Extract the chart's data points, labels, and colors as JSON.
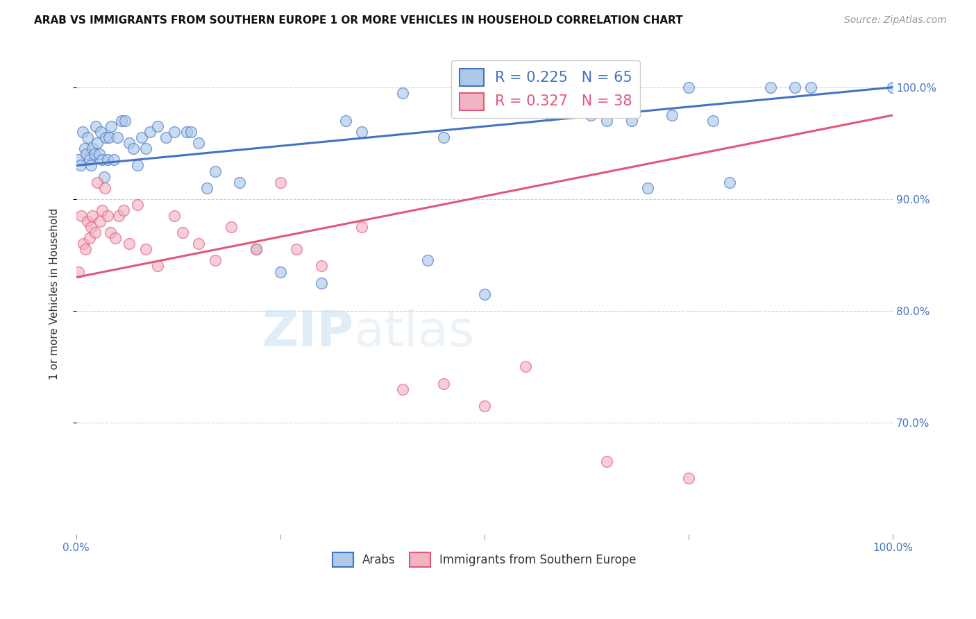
{
  "title": "ARAB VS IMMIGRANTS FROM SOUTHERN EUROPE 1 OR MORE VEHICLES IN HOUSEHOLD CORRELATION CHART",
  "source": "Source: ZipAtlas.com",
  "ylabel": "1 or more Vehicles in Household",
  "legend_arab": "Arabs",
  "legend_imm": "Immigrants from Southern Europe",
  "R_arab": 0.225,
  "N_arab": 65,
  "R_imm": 0.327,
  "N_imm": 38,
  "watermark_zip": "ZIP",
  "watermark_atlas": "atlas",
  "arab_color": "#adc9e8",
  "arab_line_color": "#4472c4",
  "imm_color": "#f2b3c5",
  "imm_line_color": "#e05878",
  "background": "#ffffff",
  "arab_x": [
    0.3,
    0.5,
    0.8,
    1.0,
    1.2,
    1.4,
    1.6,
    1.8,
    2.0,
    2.2,
    2.4,
    2.6,
    2.8,
    3.0,
    3.2,
    3.4,
    3.6,
    3.8,
    4.0,
    4.3,
    4.6,
    5.0,
    5.5,
    6.0,
    6.5,
    7.0,
    7.5,
    8.0,
    8.5,
    9.0,
    10.0,
    11.0,
    12.0,
    13.5,
    14.0,
    15.0,
    16.0,
    17.0,
    20.0,
    22.0,
    25.0,
    30.0,
    33.0,
    35.0,
    40.0,
    43.0,
    45.0,
    48.0,
    50.0,
    53.0,
    55.0,
    58.0,
    60.0,
    63.0,
    65.0,
    68.0,
    70.0,
    73.0,
    75.0,
    78.0,
    80.0,
    85.0,
    88.0,
    90.0,
    100.0
  ],
  "arab_y": [
    93.5,
    93.0,
    96.0,
    94.5,
    94.0,
    95.5,
    93.5,
    93.0,
    94.5,
    94.0,
    96.5,
    95.0,
    94.0,
    96.0,
    93.5,
    92.0,
    95.5,
    93.5,
    95.5,
    96.5,
    93.5,
    95.5,
    97.0,
    97.0,
    95.0,
    94.5,
    93.0,
    95.5,
    94.5,
    96.0,
    96.5,
    95.5,
    96.0,
    96.0,
    96.0,
    95.0,
    91.0,
    92.5,
    91.5,
    85.5,
    83.5,
    82.5,
    97.0,
    96.0,
    99.5,
    84.5,
    95.5,
    99.0,
    81.5,
    98.5,
    98.0,
    97.5,
    98.0,
    97.5,
    97.0,
    97.0,
    91.0,
    97.5,
    100.0,
    97.0,
    91.5,
    100.0,
    100.0,
    100.0,
    100.0
  ],
  "imm_x": [
    0.3,
    0.6,
    0.9,
    1.1,
    1.4,
    1.6,
    1.8,
    2.0,
    2.3,
    2.6,
    2.9,
    3.2,
    3.5,
    3.8,
    4.2,
    4.8,
    5.2,
    5.8,
    6.5,
    7.5,
    8.5,
    10.0,
    12.0,
    13.0,
    15.0,
    17.0,
    19.0,
    22.0,
    25.0,
    27.0,
    30.0,
    35.0,
    40.0,
    45.0,
    50.0,
    55.0,
    65.0,
    75.0
  ],
  "imm_y": [
    83.5,
    88.5,
    86.0,
    85.5,
    88.0,
    86.5,
    87.5,
    88.5,
    87.0,
    91.5,
    88.0,
    89.0,
    91.0,
    88.5,
    87.0,
    86.5,
    88.5,
    89.0,
    86.0,
    89.5,
    85.5,
    84.0,
    88.5,
    87.0,
    86.0,
    84.5,
    87.5,
    85.5,
    91.5,
    85.5,
    84.0,
    87.5,
    73.0,
    73.5,
    71.5,
    75.0,
    66.5,
    65.0
  ],
  "xlim": [
    0,
    100
  ],
  "ylim_bottom": 60,
  "ylim_top": 103,
  "yticks": [
    70,
    80,
    90,
    100
  ],
  "ytick_labels": [
    "70.0%",
    "80.0%",
    "90.0%",
    "100.0%"
  ],
  "xtick_labels": [
    "0.0%",
    "",
    "",
    "",
    "100.0%"
  ],
  "arab_line_x0": 0,
  "arab_line_y0": 93.0,
  "arab_line_x1": 100,
  "arab_line_y1": 100.0,
  "imm_line_x0": 0,
  "imm_line_y0": 83.0,
  "imm_line_x1": 100,
  "imm_line_y1": 97.5
}
